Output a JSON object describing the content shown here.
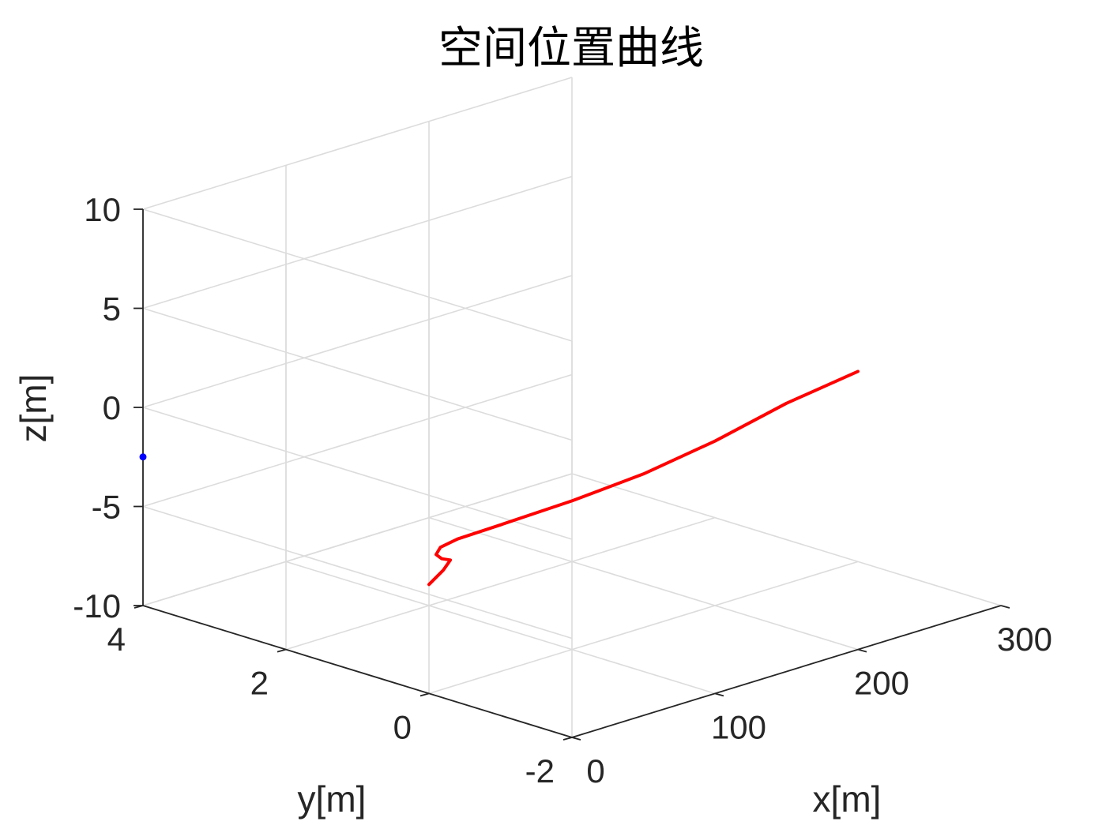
{
  "chart_data": {
    "type": "line3d",
    "title": "空间位置曲线",
    "xlabel": "x[m]",
    "ylabel": "y[m]",
    "zlabel": "z[m]",
    "xlim": [
      0,
      300
    ],
    "ylim": [
      -2,
      4
    ],
    "zlim": [
      -10,
      10
    ],
    "xticks": [
      0,
      100,
      200,
      300
    ],
    "xtick_labels": [
      "0",
      "100",
      "200",
      "300"
    ],
    "yticks": [
      -2,
      0,
      2,
      4
    ],
    "ytick_labels": [
      "-2",
      "0",
      "2",
      "4"
    ],
    "zticks": [
      -10,
      -5,
      0,
      5,
      10
    ],
    "ztick_labels": [
      "-10",
      "-5",
      "0",
      "5",
      "10"
    ],
    "grid": true,
    "series": [
      {
        "type": "line",
        "color": "#ff0000",
        "points": [
          [
            0,
            0,
            -4.5
          ],
          [
            10,
            0,
            -4
          ],
          [
            15,
            0,
            -3.6
          ],
          [
            9,
            0,
            -3.4
          ],
          [
            5,
            0,
            -3.1
          ],
          [
            8,
            0,
            -2.8
          ],
          [
            20,
            0,
            -2.65
          ],
          [
            50,
            0,
            -2.6
          ],
          [
            100,
            0,
            -2.5
          ],
          [
            150,
            0,
            -2.25
          ],
          [
            200,
            0,
            -1.7
          ],
          [
            250,
            0,
            -0.9
          ],
          [
            300,
            0,
            -0.4
          ]
        ]
      },
      {
        "type": "point",
        "color": "#0000ff",
        "points": [
          [
            0,
            4,
            -2.5
          ]
        ]
      }
    ]
  }
}
